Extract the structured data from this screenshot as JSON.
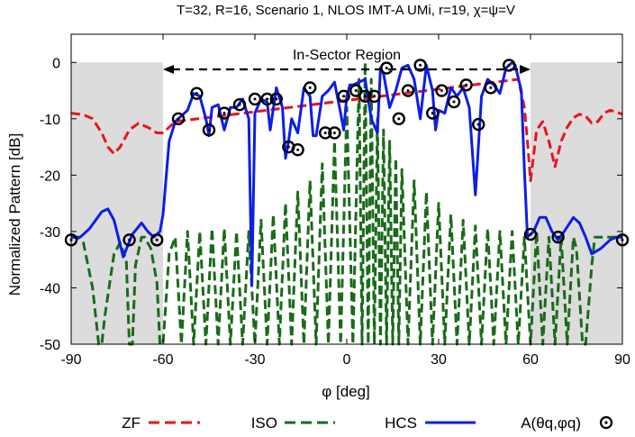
{
  "chart_data": {
    "type": "line",
    "title": "T=32, R=16, Scenario 1, NLOS IMT-A UMi, r=19, χ=ψ=V",
    "xlabel": "φ [deg]",
    "ylabel": "Normalized Pattern [dB]",
    "xlim": [
      -90,
      90
    ],
    "ylim": [
      -50,
      5
    ],
    "xticks": [
      -90,
      -60,
      -30,
      0,
      30,
      60,
      90
    ],
    "xtick_labels": [
      "-90",
      "-60",
      "-30",
      "0",
      "30",
      "60",
      "90"
    ],
    "yticks": [
      0,
      -10,
      -20,
      -30,
      -40,
      -50
    ],
    "ytick_labels": [
      "0",
      "-10",
      "-20",
      "-30",
      "-40",
      "-50"
    ],
    "grid": false,
    "legend_position": "bottom",
    "annotation": {
      "text": "In-Sector Region",
      "from": -60,
      "to": 60
    },
    "shaded_regions": [
      [
        -90,
        -60
      ],
      [
        60,
        90
      ]
    ],
    "series": [
      {
        "name": "ZF",
        "color": "#e8141c",
        "style": "dashed",
        "x": [
          -90,
          -86,
          -83,
          -80,
          -78,
          -76,
          -74,
          -71,
          -68,
          -65,
          -62,
          -60,
          -58,
          -56,
          56,
          58,
          59,
          60,
          62,
          64,
          66,
          68,
          70,
          72,
          74,
          76,
          78,
          80,
          82,
          84,
          86,
          88,
          90
        ],
        "y": [
          -9,
          -9.3,
          -10,
          -12.5,
          -15,
          -16.2,
          -15,
          -12,
          -10.8,
          -11.5,
          -12.5,
          -12.5,
          -11.5,
          -10.5,
          -3,
          -8,
          -14,
          -21,
          -12,
          -10.5,
          -14,
          -18.5,
          -14,
          -11.5,
          -9.8,
          -9.2,
          -9.5,
          -10.8,
          -10.5,
          -9,
          -8.5,
          -8.8,
          -9.2
        ]
      },
      {
        "name": "ISO",
        "color": "#1a6b1a",
        "style": "dashed",
        "x": [
          -90,
          -88,
          -86,
          -83,
          -81,
          -80,
          -79,
          -76,
          -74,
          -72,
          -71,
          -70,
          -69,
          -67,
          -66,
          -64,
          -62,
          -61,
          -60,
          -58,
          -56,
          -54,
          -52,
          -50,
          -48,
          -46,
          -44,
          -42,
          -40,
          -38,
          -36,
          -34,
          -32,
          -30,
          -28,
          -26,
          -24,
          -22,
          -20,
          -18,
          -16,
          -14,
          -12,
          -10,
          -8,
          -6,
          -4,
          -2,
          0,
          2,
          4,
          5,
          6,
          7,
          8,
          9,
          10,
          11,
          12,
          13,
          14,
          15,
          16,
          17,
          18,
          20,
          22,
          24,
          26,
          28,
          30,
          32,
          34,
          36,
          38,
          40,
          42,
          44,
          46,
          48,
          50,
          52,
          54,
          56,
          58,
          60,
          62,
          64,
          66,
          68,
          70,
          72,
          74,
          75,
          77,
          78,
          80,
          81,
          84,
          86,
          88,
          90
        ],
        "y": [
          -31,
          -31,
          -32,
          -40,
          -50,
          -50,
          -45,
          -34,
          -32,
          -35,
          -50,
          -50,
          -36,
          -31,
          -31,
          -33,
          -39,
          -50,
          -50,
          -34,
          -31,
          -50,
          -30,
          -50,
          -30,
          -50,
          -29.5,
          -50,
          -29.5,
          -50,
          -30,
          -50,
          -30,
          -50,
          -28,
          -50,
          -27,
          -50,
          -25,
          -50,
          -23,
          -50,
          -21,
          -50,
          -18,
          -50,
          -14,
          -50,
          -8,
          -50,
          -3,
          -50,
          0,
          -50,
          -3,
          -50,
          -10,
          -50,
          -12,
          -50,
          -14,
          -50,
          -17,
          -50,
          -19,
          -50,
          -21,
          -50,
          -23,
          -50,
          -25,
          -50,
          -27,
          -50,
          -28,
          -50,
          -29,
          -50,
          -29.5,
          -50,
          -30,
          -50,
          -30,
          -50,
          -31,
          -50,
          -30,
          -50,
          -31,
          -50,
          -31,
          -50,
          -31,
          -33,
          -50,
          -50,
          -36,
          -31,
          -31,
          -31,
          -31,
          -31
        ]
      },
      {
        "name": "HCS",
        "color": "#0d1ee6",
        "style": "solid",
        "x": [
          -90,
          -87,
          -84,
          -80,
          -78,
          -76,
          -73,
          -70,
          -67,
          -65,
          -63,
          -61,
          -60,
          -58,
          -56,
          -54,
          -52,
          -50,
          -48,
          -46,
          -45,
          -44,
          -42,
          -40,
          -38,
          -36,
          -34,
          -32,
          -31,
          -30,
          -28,
          -26,
          -25,
          -23,
          -21,
          -20,
          -19,
          -18,
          -16,
          -14,
          -12,
          -11,
          -10,
          -8,
          -6,
          -4,
          -2,
          -1,
          0,
          1,
          2,
          4,
          6,
          8,
          10,
          11,
          12,
          14,
          16,
          18,
          20,
          22,
          24,
          26,
          28,
          29,
          30,
          32,
          34,
          36,
          38,
          40,
          42,
          44,
          46,
          48,
          50,
          52,
          54,
          55,
          57,
          58,
          59,
          61,
          63,
          65,
          67,
          69,
          71,
          74,
          76,
          78,
          80,
          83,
          86,
          88,
          90
        ],
        "y": [
          -31,
          -31,
          -29.5,
          -26.5,
          -26,
          -28,
          -34.5,
          -30.5,
          -28.5,
          -30,
          -31,
          -30,
          -27,
          -14,
          -10.5,
          -9.5,
          -8.5,
          -5.5,
          -6,
          -10,
          -13,
          -8,
          -7.5,
          -12,
          -8,
          -8,
          -6.5,
          -10,
          -39.5,
          -9,
          -6.5,
          -7,
          -12,
          -4.5,
          -8,
          -17,
          -14,
          -10,
          -12.5,
          -4.5,
          -6,
          -13,
          -13,
          -6,
          -5,
          -3.5,
          -9,
          -12,
          -6,
          -4,
          -4,
          -3.5,
          -3,
          -10,
          -12.5,
          -1,
          -2,
          -8,
          -5,
          -1,
          -0.5,
          -3,
          -10,
          -0.5,
          -5,
          -12,
          -8.5,
          -9,
          -4.5,
          -6,
          -4.5,
          -8,
          -23.5,
          -6,
          -3,
          -4,
          -5.5,
          -1,
          0,
          -0.5,
          -5,
          -19,
          -31,
          -30,
          -27.5,
          -27.5,
          -30,
          -31.5,
          -30,
          -27.5,
          -28.5,
          -31,
          -34,
          -33,
          -31.5,
          -31,
          -31
        ]
      },
      {
        "name": "A(θq,φq)",
        "color": "#000000",
        "style": "markers",
        "x": [
          -90,
          -71,
          -62,
          -55,
          -49,
          -45,
          -40,
          -35,
          -30,
          -26,
          -23,
          -19,
          -16,
          -12,
          -7,
          -4,
          -1,
          3,
          6,
          9,
          13,
          17,
          20,
          24,
          28,
          31,
          35,
          39,
          43,
          47,
          53,
          60,
          69,
          90
        ],
        "y": [
          -31.5,
          -31.5,
          -31.5,
          -10,
          -5.5,
          -12,
          -9,
          -7.5,
          -6.5,
          -6.5,
          -6.5,
          -15,
          -15.5,
          -4.5,
          -12.5,
          -12.5,
          -6,
          -5,
          -6,
          -6,
          -1,
          -10,
          -5,
          -0.5,
          -9,
          -5,
          -7,
          -4,
          -11,
          -4.5,
          -0.5,
          -30.5,
          -31,
          -31.5
        ]
      }
    ]
  },
  "legend": {
    "zf": "ZF",
    "iso": "ISO",
    "hcs": "HCS",
    "marker_label": "A(θq,φq)"
  }
}
